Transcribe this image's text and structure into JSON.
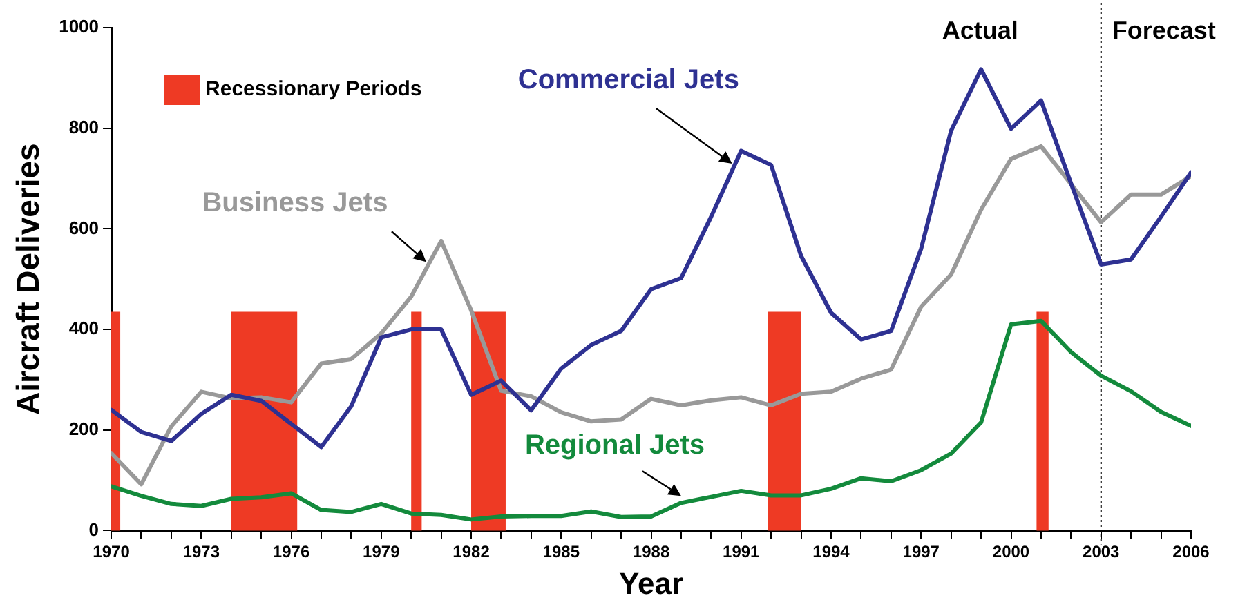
{
  "chart_data": {
    "type": "line",
    "xlabel": "Year",
    "ylabel": "Aircraft Deliveries",
    "x": [
      1970,
      1971,
      1972,
      1973,
      1974,
      1975,
      1976,
      1977,
      1978,
      1979,
      1980,
      1981,
      1982,
      1983,
      1984,
      1985,
      1986,
      1987,
      1988,
      1989,
      1990,
      1991,
      1992,
      1993,
      1994,
      1995,
      1996,
      1997,
      1998,
      1999,
      2000,
      2001,
      2002,
      2003,
      2004,
      2005,
      2006
    ],
    "series": [
      {
        "name": "Commercial Jets",
        "color": "#2e3192",
        "values": [
          240,
          196,
          178,
          232,
          270,
          258,
          212,
          166,
          247,
          384,
          400,
          400,
          270,
          298,
          239,
          322,
          369,
          397,
          480,
          502,
          624,
          755,
          727,
          546,
          433,
          380,
          397,
          560,
          795,
          917,
          799,
          855,
          690,
          529,
          539,
          624,
          712
        ]
      },
      {
        "name": "Business Jets",
        "color": "#999999",
        "values": [
          154,
          92,
          207,
          276,
          263,
          265,
          255,
          332,
          341,
          392,
          465,
          576,
          438,
          278,
          267,
          235,
          217,
          221,
          262,
          249,
          259,
          265,
          249,
          272,
          276,
          302,
          320,
          445,
          509,
          638,
          739,
          764,
          689,
          613,
          668,
          668,
          705
        ]
      },
      {
        "name": "Regional Jets",
        "color": "#138a3c",
        "values": [
          88,
          69,
          53,
          49,
          63,
          66,
          74,
          41,
          37,
          53,
          34,
          31,
          22,
          28,
          29,
          29,
          38,
          27,
          28,
          55,
          67,
          79,
          70,
          70,
          83,
          104,
          98,
          120,
          153,
          215,
          410,
          417,
          355,
          308,
          277,
          236,
          208
        ]
      }
    ],
    "xlim": [
      1970,
      2006
    ],
    "xticks": [
      1970,
      {
        "value": 1971,
        "label": null
      },
      {
        "value": 1972,
        "label": null
      },
      1973,
      {
        "value": 1974,
        "label": null
      },
      {
        "value": 1975,
        "label": null
      },
      1976,
      {
        "value": 1977,
        "label": null
      },
      {
        "value": 1978,
        "label": null
      },
      1979,
      {
        "value": 1980,
        "label": null
      },
      {
        "value": 1981,
        "label": null
      },
      1982,
      {
        "value": 1983,
        "label": null
      },
      {
        "value": 1984,
        "label": null
      },
      1985,
      {
        "value": 1986,
        "label": null
      },
      {
        "value": 1987,
        "label": null
      },
      1988,
      {
        "value": 1989,
        "label": null
      },
      {
        "value": 1990,
        "label": null
      },
      1991,
      {
        "value": 1992,
        "label": null
      },
      {
        "value": 1993,
        "label": null
      },
      1994,
      {
        "value": 1995,
        "label": null
      },
      {
        "value": 1996,
        "label": null
      },
      1997,
      {
        "value": 1998,
        "label": null
      },
      {
        "value": 1999,
        "label": null
      },
      2000,
      {
        "value": 2001,
        "label": null
      },
      {
        "value": 2002,
        "label": null
      },
      2003,
      {
        "value": 2004,
        "label": null
      },
      {
        "value": 2005,
        "label": null
      },
      2006
    ],
    "ylim": [
      0,
      1000
    ],
    "yticks": [
      0,
      200,
      400,
      600,
      800,
      1000
    ],
    "grid": false,
    "legend": "top left",
    "marker": "none",
    "line_style": "solid",
    "bands": [
      {
        "axis": "x",
        "from": 1970,
        "to": 1970.3,
        "label": "Recessionary Periods",
        "color": "#ee3a24"
      },
      {
        "axis": "x",
        "from": 1974,
        "to": 1976.2,
        "color": "#ee3a24"
      },
      {
        "axis": "x",
        "from": 1980,
        "to": 1980.35,
        "color": "#ee3a24"
      },
      {
        "axis": "x",
        "from": 1982,
        "to": 1983.15,
        "color": "#ee3a24"
      },
      {
        "axis": "x",
        "from": 1991.9,
        "to": 1993,
        "color": "#ee3a24"
      },
      {
        "axis": "x",
        "from": 2000.85,
        "to": 2001.25,
        "color": "#ee3a24"
      }
    ],
    "ref_lines": [
      {
        "axis": "x",
        "value": 2003,
        "color": "#000000",
        "line_style": "dotted"
      }
    ],
    "annotations": [
      "Actual",
      "Forecast"
    ]
  }
}
